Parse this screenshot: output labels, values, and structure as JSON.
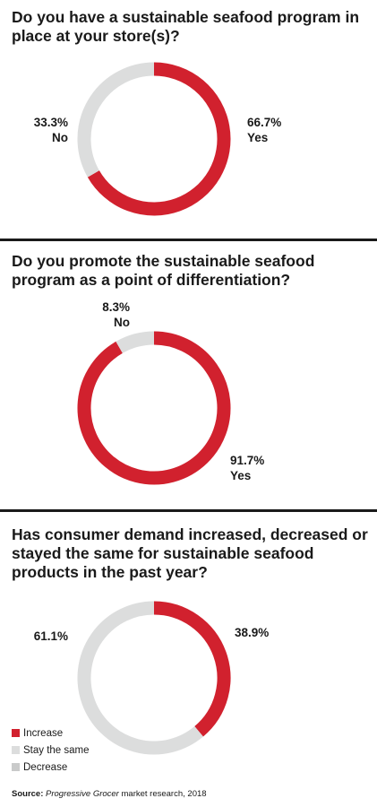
{
  "colors": {
    "red": "#d1212e",
    "light_gray": "#dcdddd",
    "gray": "#c9caca"
  },
  "chart_data": [
    {
      "type": "pie",
      "variant": "donut",
      "title": "Do you have a sustainable seafood program in place at your store(s)?",
      "slices": [
        {
          "label": "Yes",
          "value": 66.7,
          "value_label": "66.7%",
          "color": "#d1212e"
        },
        {
          "label": "No",
          "value": 33.3,
          "value_label": "33.3%",
          "color": "#dcdddd"
        }
      ]
    },
    {
      "type": "pie",
      "variant": "donut",
      "title": "Do you promote the sustainable seafood program as a point of differentiation?",
      "slices": [
        {
          "label": "Yes",
          "value": 91.7,
          "value_label": "91.7%",
          "color": "#d1212e"
        },
        {
          "label": "No",
          "value": 8.3,
          "value_label": "8.3%",
          "color": "#dcdddd"
        }
      ]
    },
    {
      "type": "pie",
      "variant": "donut",
      "title": "Has consumer demand increased, decreased or stayed the same for sustainable seafood products in the past year?",
      "legend": [
        "Increase",
        "Stay the same",
        "Decrease"
      ],
      "legend_colors": [
        "#d1212e",
        "#dcdddd",
        "#c9caca"
      ],
      "slices": [
        {
          "label": "Increase",
          "value": 38.9,
          "value_label": "38.9%",
          "color": "#d1212e"
        },
        {
          "label": "Stay the same",
          "value": 61.1,
          "value_label": "61.1%",
          "color": "#dcdddd"
        }
      ]
    }
  ],
  "source": {
    "label": "Source:",
    "publication": "Progressive Grocer",
    "text": "market research, 2018"
  }
}
